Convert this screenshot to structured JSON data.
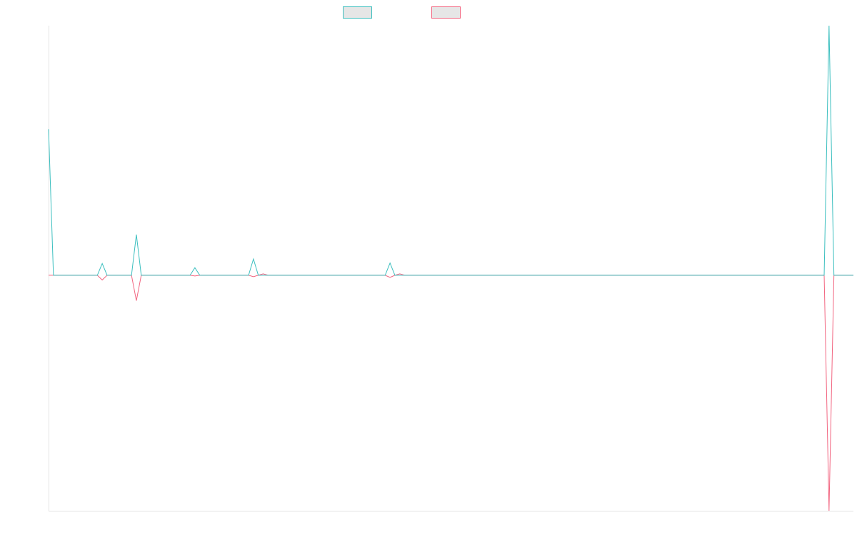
{
  "chart_data": {
    "type": "line",
    "title": "",
    "xlabel": "",
    "ylabel": "",
    "grid": false,
    "legend": {
      "position": "top",
      "entries": [
        "",
        ""
      ]
    },
    "colors": [
      "#3bbfbf",
      "#f26580"
    ],
    "x": [
      0,
      1,
      2,
      3,
      4,
      5,
      6,
      7,
      8,
      9,
      10,
      11,
      12,
      13,
      14,
      15,
      16,
      17,
      18,
      19,
      20,
      21,
      22,
      23,
      24,
      25,
      26,
      27,
      28,
      29,
      30,
      31,
      32,
      33,
      34,
      35,
      36,
      37,
      38,
      39,
      40,
      41,
      42,
      43,
      44,
      45,
      46,
      47,
      48,
      49,
      50,
      51,
      52,
      53,
      54,
      55,
      56,
      57,
      58,
      59,
      60,
      61,
      62,
      63,
      64,
      65,
      66,
      67,
      68,
      69,
      70,
      71,
      72,
      73,
      74,
      75,
      76,
      77,
      78,
      79,
      80,
      81,
      82,
      83,
      84,
      85,
      86,
      87,
      88,
      89,
      90,
      91,
      92,
      93,
      94,
      95,
      96,
      97,
      98,
      99,
      100,
      101,
      102,
      103,
      104,
      105,
      106,
      107,
      108,
      109,
      110,
      111,
      112,
      113,
      114,
      115,
      116,
      117,
      118,
      119,
      120,
      121,
      122,
      123,
      124,
      125,
      126,
      127,
      128,
      129,
      130,
      131,
      132,
      133,
      134,
      135,
      136,
      137,
      138,
      139,
      140,
      141,
      142,
      143,
      144,
      145,
      146,
      147,
      148,
      149,
      150,
      151,
      152,
      153,
      154,
      155,
      156,
      157,
      158,
      159,
      160,
      161,
      162,
      163,
      164,
      165
    ],
    "series": [
      {
        "values": [
          62.0,
          0,
          0,
          0,
          0,
          0,
          0,
          0,
          0,
          0,
          0,
          5.0,
          0,
          0,
          0,
          0,
          0,
          0,
          17.3,
          0,
          0,
          0,
          0,
          0,
          0,
          0,
          0,
          0,
          0,
          0,
          3.2,
          0,
          0,
          0,
          0,
          0,
          0,
          0,
          0,
          0,
          0,
          0,
          6.9,
          0,
          0,
          0,
          0,
          0,
          0,
          0,
          0,
          0,
          0,
          0,
          0,
          0,
          0,
          0,
          0,
          0,
          0,
          0,
          0,
          0,
          0,
          0,
          0,
          0,
          0,
          0,
          5.2,
          0,
          0,
          0,
          0,
          0,
          0,
          0,
          0,
          0,
          0,
          0,
          0,
          0,
          0,
          0,
          0,
          0,
          0,
          0,
          0,
          0,
          0,
          0,
          0,
          0,
          0,
          0,
          0,
          0,
          0,
          0,
          0,
          0,
          0,
          0,
          0,
          0,
          0,
          0,
          0,
          0,
          0,
          0,
          0,
          0,
          0,
          0,
          0,
          0,
          0,
          0,
          0,
          0,
          0,
          0,
          0,
          0,
          0,
          0,
          0,
          0,
          0,
          0,
          0,
          0,
          0,
          0,
          0,
          0,
          0,
          0,
          0,
          0,
          0,
          0,
          0,
          0,
          0,
          0,
          0,
          0,
          0,
          0,
          0,
          0,
          0,
          0,
          0,
          0,
          106.0,
          0,
          0,
          0,
          0,
          0
        ]
      },
      {
        "values": [
          0,
          0,
          0,
          0,
          0,
          0,
          0,
          0,
          0,
          0,
          0,
          -2.0,
          0,
          0,
          0,
          0,
          0,
          0,
          -10.8,
          0,
          0,
          0,
          0,
          0,
          0,
          0,
          0,
          0,
          0,
          0,
          -0.3,
          0,
          0,
          0,
          0,
          0,
          0,
          0,
          0,
          0,
          0,
          0,
          -0.6,
          0,
          0.6,
          0,
          0,
          0,
          0,
          0,
          0,
          0,
          0,
          0,
          0,
          0,
          0,
          0,
          0,
          0,
          0,
          0,
          0,
          0,
          0,
          0,
          0,
          0,
          0,
          0,
          -0.9,
          0,
          0.6,
          0,
          0,
          0,
          0,
          0,
          0,
          0,
          0,
          0,
          0,
          0,
          0,
          0,
          0,
          0,
          0,
          0,
          0,
          0,
          0,
          0,
          0,
          0,
          0,
          0,
          0,
          0,
          0,
          0,
          0,
          0,
          0,
          0,
          0,
          0,
          0,
          0,
          0,
          0,
          0,
          0,
          0,
          0,
          0,
          0,
          0,
          0,
          0,
          0,
          0,
          0,
          0,
          0,
          0,
          0,
          0,
          0,
          0,
          0,
          0,
          0,
          0,
          0,
          0,
          0,
          0,
          0,
          0,
          0,
          0,
          0,
          0,
          0,
          0,
          0,
          0,
          0,
          0,
          0,
          0,
          0,
          0,
          0,
          0,
          0,
          0,
          0,
          -100.0,
          0,
          0,
          0,
          0,
          0
        ]
      }
    ],
    "xlim": [
      0,
      165
    ],
    "ylim": [
      -100,
      106
    ]
  }
}
